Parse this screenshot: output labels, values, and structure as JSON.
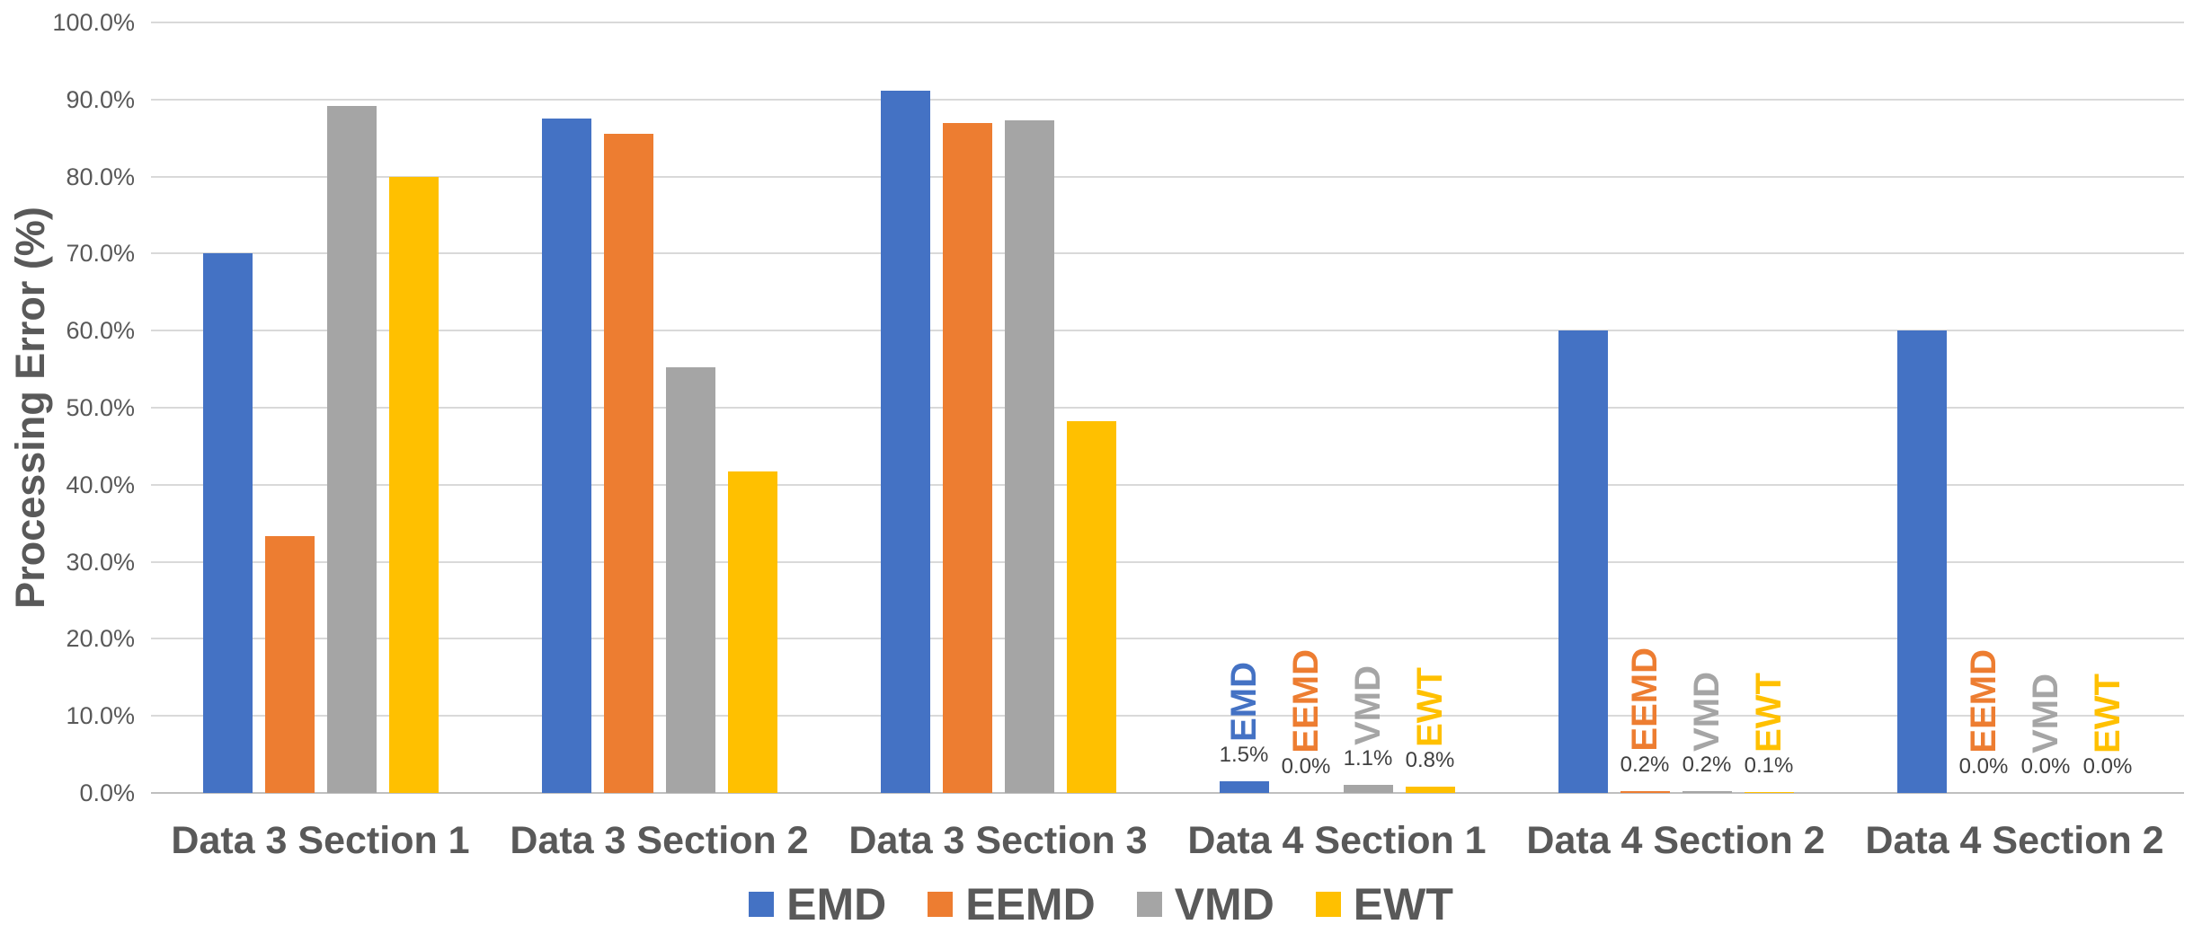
{
  "colors": {
    "background": "#FFFFFF",
    "axis_text": "#595959",
    "value_label_text": "#404040",
    "gridline": "#D9D9D9",
    "baseline": "#BFBFBF"
  },
  "chart_data": {
    "type": "bar",
    "title": "",
    "ylabel": "Processing Error (%)",
    "xlabel": "",
    "ylim": [
      0,
      100
    ],
    "grid": true,
    "legend_position": "bottom",
    "y_ticks": [
      "0.0%",
      "10.0%",
      "20.0%",
      "30.0%",
      "40.0%",
      "50.0%",
      "60.0%",
      "70.0%",
      "80.0%",
      "90.0%",
      "100.0%"
    ],
    "categories": [
      "Data 3 Section 1",
      "Data 3 Section 2",
      "Data 3 Section 3",
      "Data 4 Section 1",
      "Data 4 Section 2",
      "Data 4 Section 2"
    ],
    "series": [
      {
        "name": "EMD",
        "color": "#4472C4",
        "values": [
          70.0,
          87.5,
          91.2,
          1.5,
          60.0,
          60.0
        ],
        "point_labels": [
          null,
          null,
          null,
          "1.5%",
          null,
          null
        ]
      },
      {
        "name": "EEMD",
        "color": "#ED7D31",
        "values": [
          33.3,
          85.5,
          87.0,
          0.0,
          0.2,
          0.0
        ],
        "point_labels": [
          null,
          null,
          null,
          "0.0%",
          "0.2%",
          "0.0%"
        ]
      },
      {
        "name": "VMD",
        "color": "#A5A5A5",
        "values": [
          89.2,
          55.3,
          87.3,
          1.1,
          0.2,
          0.0
        ],
        "point_labels": [
          null,
          null,
          null,
          "1.1%",
          "0.2%",
          "0.0%"
        ]
      },
      {
        "name": "EWT",
        "color": "#FFC000",
        "values": [
          80.0,
          41.7,
          48.2,
          0.8,
          0.1,
          0.0
        ],
        "point_labels": [
          null,
          null,
          null,
          "0.8%",
          "0.1%",
          "0.0%"
        ]
      }
    ]
  }
}
